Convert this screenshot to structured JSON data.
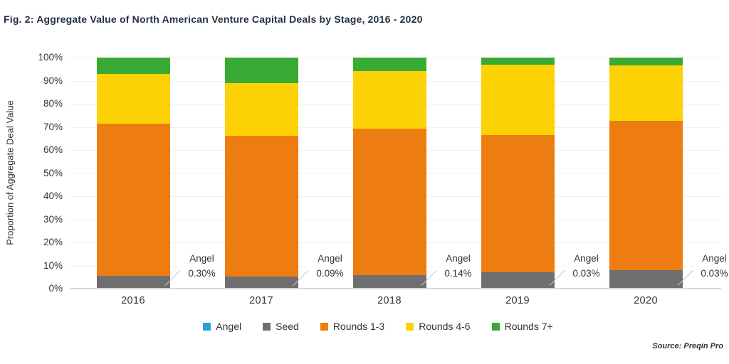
{
  "figure": {
    "source": "Source: Preqin Pro"
  },
  "chart_data": {
    "type": "bar",
    "stacked": true,
    "title": "Fig. 2: Aggregate Value of North American Venture Capital Deals by Stage, 2016 - 2020",
    "categories": [
      "2016",
      "2017",
      "2018",
      "2019",
      "2020"
    ],
    "series": [
      {
        "name": "Angel",
        "color": "#2B9FD9",
        "values": [
          0.3,
          0.09,
          0.14,
          0.03,
          0.03
        ]
      },
      {
        "name": "Seed",
        "color": "#6F6F6F",
        "values": [
          5.1,
          5.2,
          5.6,
          7.2,
          8.1
        ]
      },
      {
        "name": "Rounds 1-3",
        "color": "#ED7D11",
        "values": [
          66.0,
          60.9,
          63.5,
          59.2,
          64.6
        ]
      },
      {
        "name": "Rounds 4-6",
        "color": "#FDD205",
        "values": [
          21.6,
          22.7,
          24.9,
          30.4,
          23.9
        ]
      },
      {
        "name": "Rounds 7+",
        "color": "#3BAA35",
        "values": [
          7.0,
          11.1,
          5.9,
          3.1,
          3.4
        ]
      }
    ],
    "ylabel": "Proportion of Aggregate Deal Value",
    "xlabel": "",
    "ylim": [
      0,
      100
    ],
    "yticks": [
      "0%",
      "10%",
      "20%",
      "30%",
      "40%",
      "50%",
      "60%",
      "70%",
      "80%",
      "90%",
      "100%"
    ],
    "grid": true,
    "legend_position": "bottom",
    "annotations": [
      {
        "category": "2016",
        "label": "Angel",
        "value": "0.30%"
      },
      {
        "category": "2017",
        "label": "Angel",
        "value": "0.09%"
      },
      {
        "category": "2018",
        "label": "Angel",
        "value": "0.14%"
      },
      {
        "category": "2019",
        "label": "Angel",
        "value": "0.03%"
      },
      {
        "category": "2020",
        "label": "Angel",
        "value": "0.03%"
      }
    ]
  }
}
